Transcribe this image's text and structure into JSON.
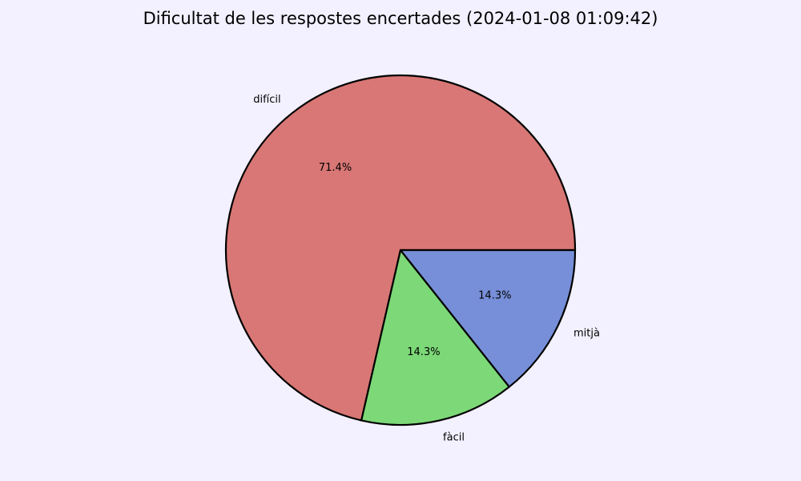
{
  "chart_data": {
    "type": "pie",
    "title": "Dificultat de les respostes encertades (2024-01-08 01:09:42)",
    "slices": [
      {
        "label": "difícil",
        "value": 71.4,
        "pct_label": "71.4%",
        "color": "#d87775"
      },
      {
        "label": "fàcil",
        "value": 14.3,
        "pct_label": "14.3%",
        "color": "#7dd878"
      },
      {
        "label": "mitjà",
        "value": 14.3,
        "pct_label": "14.3%",
        "color": "#778fd8"
      }
    ],
    "edge_color": "#000000",
    "background": "#f3f0ff",
    "start_angle_deg": 0,
    "direction": "counterclockwise"
  }
}
